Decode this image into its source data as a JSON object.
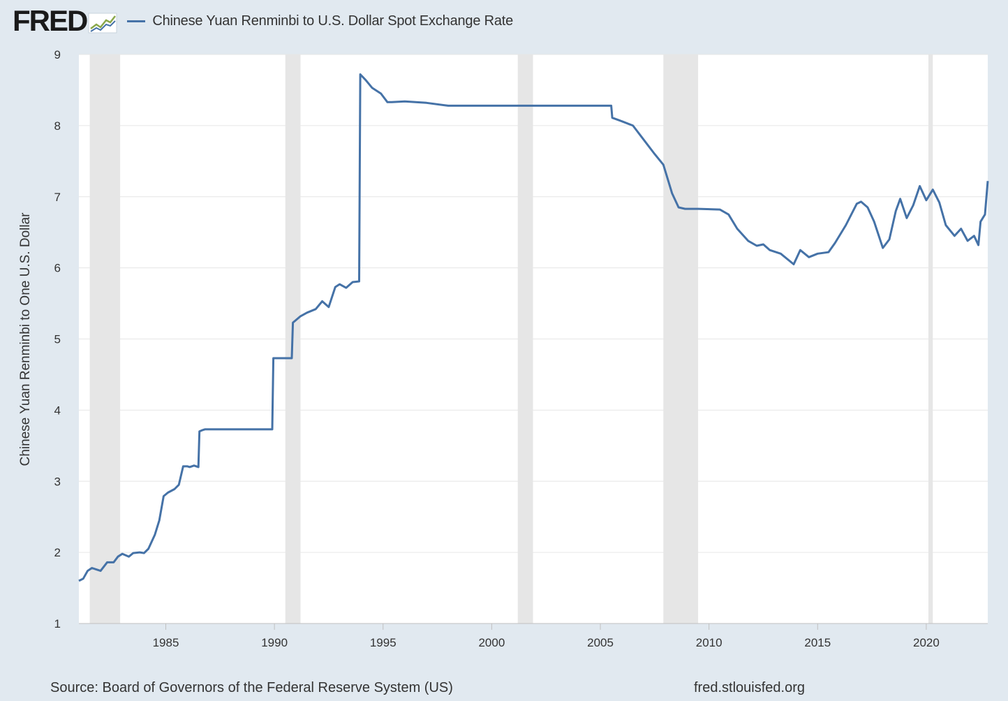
{
  "header": {
    "logo_text": "FRED",
    "series_title": "Chinese Yuan Renminbi to U.S. Dollar Spot Exchange Rate"
  },
  "colors": {
    "series": "#4572a7",
    "recession": "#e6e6e6",
    "background": "#e1e9f0",
    "plot_bg": "#ffffff",
    "grid": "#e6e6e6",
    "text": "#333333"
  },
  "chart_data": {
    "type": "line",
    "title": "Chinese Yuan Renminbi to U.S. Dollar Spot Exchange Rate",
    "xlabel": "",
    "ylabel": "Chinese Yuan Renminbi to One U.S. Dollar",
    "xlim": [
      1981.0,
      2022.83
    ],
    "ylim": [
      1,
      9
    ],
    "yticks": [
      1,
      2,
      3,
      4,
      5,
      6,
      7,
      8,
      9
    ],
    "xticks": [
      1985,
      1990,
      1995,
      2000,
      2005,
      2010,
      2015,
      2020
    ],
    "grid": true,
    "legend": "top-left",
    "recessions": [
      [
        1981.5,
        1982.9
      ],
      [
        1990.5,
        1991.2
      ],
      [
        2001.2,
        2001.9
      ],
      [
        2007.9,
        2009.5
      ],
      [
        2020.1,
        2020.3
      ]
    ],
    "series": [
      {
        "name": "Chinese Yuan Renminbi to U.S. Dollar Spot Exchange Rate",
        "x": [
          1981.0,
          1981.2,
          1981.4,
          1981.6,
          1981.8,
          1982.0,
          1982.3,
          1982.6,
          1982.8,
          1983.0,
          1983.3,
          1983.5,
          1983.8,
          1984.0,
          1984.2,
          1984.5,
          1984.7,
          1984.9,
          1985.1,
          1985.4,
          1985.6,
          1985.8,
          1986.0,
          1986.1,
          1986.3,
          1986.5,
          1986.55,
          1986.7,
          1986.8,
          1989.9,
          1989.95,
          1990.8,
          1990.85,
          1991.2,
          1991.5,
          1991.9,
          1992.2,
          1992.5,
          1992.8,
          1993.0,
          1993.3,
          1993.6,
          1993.9,
          1993.95,
          1994.2,
          1994.5,
          1994.9,
          1995.2,
          1995.4,
          1996.0,
          1997.0,
          1998.0,
          1999.0,
          2000.0,
          2001.0,
          2002.0,
          2003.0,
          2004.0,
          2005.5,
          2005.55,
          2006.0,
          2006.5,
          2007.0,
          2007.5,
          2007.9,
          2008.3,
          2008.6,
          2008.9,
          2009.5,
          2010.5,
          2010.9,
          2011.3,
          2011.8,
          2012.2,
          2012.5,
          2012.8,
          2013.3,
          2013.9,
          2014.2,
          2014.6,
          2015.0,
          2015.5,
          2015.8,
          2016.3,
          2016.8,
          2017.0,
          2017.3,
          2017.6,
          2018.0,
          2018.3,
          2018.6,
          2018.8,
          2019.1,
          2019.4,
          2019.7,
          2020.0,
          2020.3,
          2020.6,
          2020.9,
          2021.3,
          2021.6,
          2021.9,
          2022.2,
          2022.4,
          2022.5,
          2022.7,
          2022.83
        ],
        "values": [
          1.6,
          1.63,
          1.74,
          1.78,
          1.76,
          1.74,
          1.86,
          1.86,
          1.94,
          1.98,
          1.94,
          1.99,
          2.0,
          1.99,
          2.05,
          2.25,
          2.45,
          2.79,
          2.84,
          2.89,
          2.95,
          3.21,
          3.21,
          3.2,
          3.22,
          3.2,
          3.7,
          3.72,
          3.73,
          3.73,
          4.73,
          4.73,
          5.23,
          5.32,
          5.37,
          5.42,
          5.53,
          5.45,
          5.73,
          5.77,
          5.72,
          5.8,
          5.81,
          8.72,
          8.64,
          8.53,
          8.45,
          8.33,
          8.33,
          8.34,
          8.32,
          8.28,
          8.28,
          8.28,
          8.28,
          8.28,
          8.28,
          8.28,
          8.28,
          8.11,
          8.06,
          8.0,
          7.8,
          7.6,
          7.45,
          7.05,
          6.85,
          6.83,
          6.83,
          6.82,
          6.75,
          6.55,
          6.38,
          6.31,
          6.33,
          6.25,
          6.2,
          6.05,
          6.25,
          6.15,
          6.2,
          6.22,
          6.35,
          6.6,
          6.9,
          6.93,
          6.85,
          6.65,
          6.28,
          6.4,
          6.8,
          6.97,
          6.7,
          6.88,
          7.15,
          6.95,
          7.1,
          6.92,
          6.6,
          6.45,
          6.55,
          6.38,
          6.45,
          6.32,
          6.65,
          6.75,
          7.22
        ]
      }
    ]
  },
  "footer": {
    "source": "Source: Board of Governors of the Federal Reserve System (US)",
    "url": "fred.stlouisfed.org"
  }
}
